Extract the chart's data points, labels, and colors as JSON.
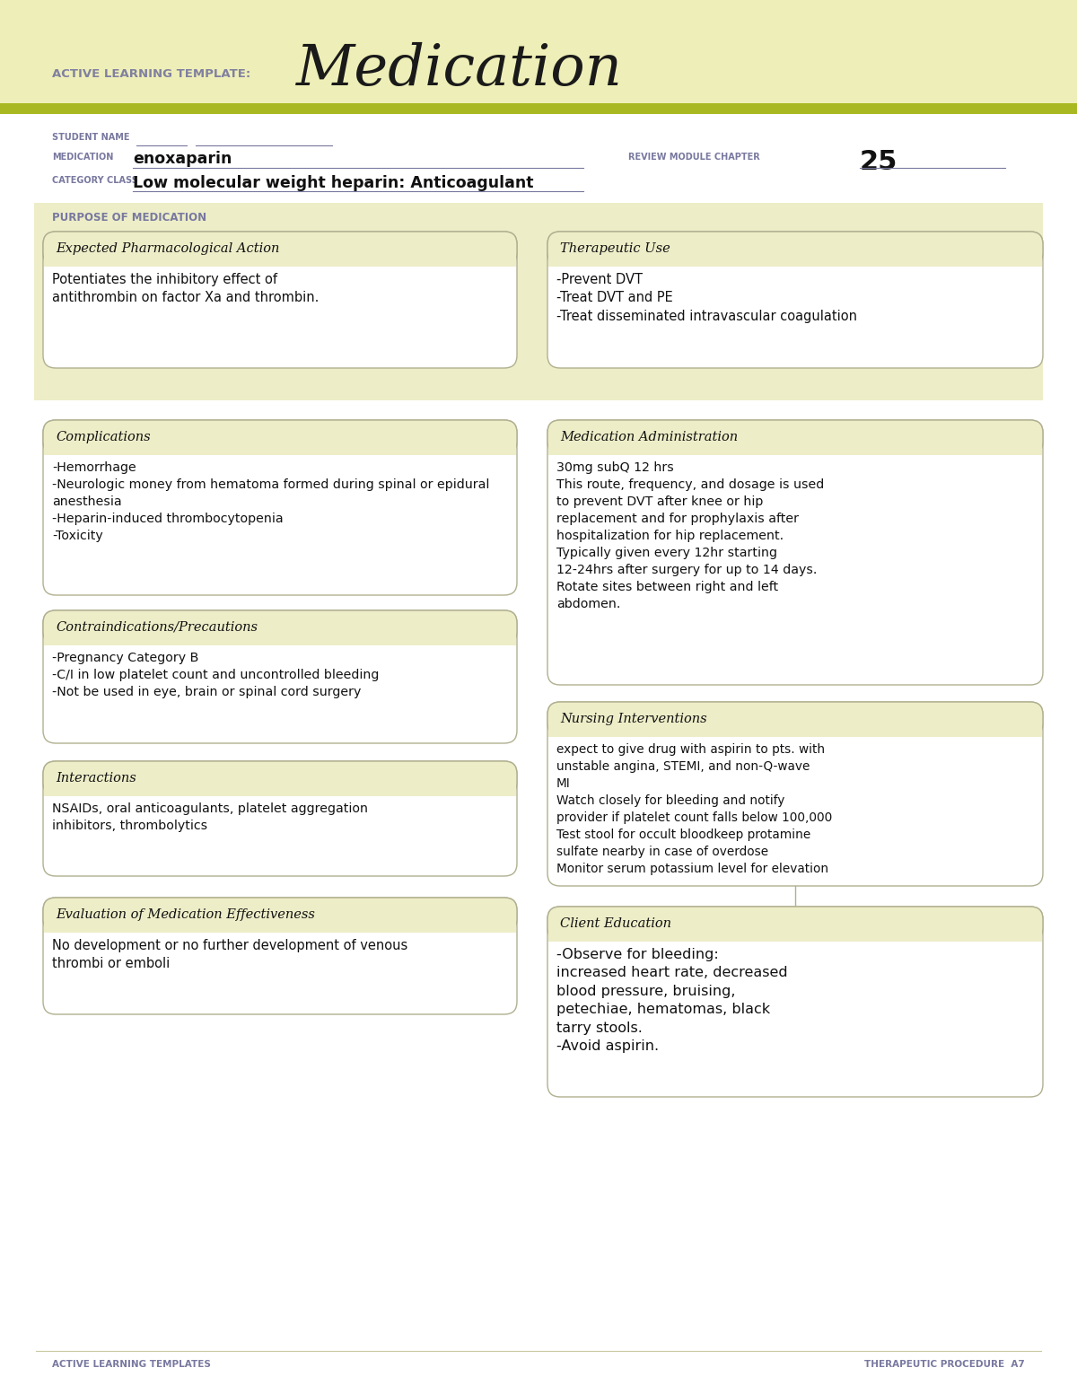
{
  "bg_color": "#f5f5dc",
  "white": "#ffffff",
  "header_bg": "#eeeeb8",
  "box_bg": "#ededc8",
  "box_border": "#b0b090",
  "title_label_color": "#8080a0",
  "title_color": "#1a1a1a",
  "label_color": "#7878a0",
  "text_color": "#111111",
  "green_line": "#a8b820",
  "header_text": "ACTIVE LEARNING TEMPLATE:",
  "title_text": "Medication",
  "student_label": "STUDENT NAME",
  "medication_label": "MEDICATION",
  "medication_value": "enoxaparin",
  "review_label": "REVIEW MODULE CHAPTER",
  "review_value": "25",
  "category_label": "CATEGORY CLASS",
  "category_value": "Low molecular weight heparin: Anticoagulant",
  "purpose_label": "PURPOSE OF MEDICATION",
  "box1_title": "Expected Pharmacological Action",
  "box1_body": "Potentiates the inhibitory effect of\nantithrombin on factor Xa and thrombin.",
  "box2_title": "Therapeutic Use",
  "box2_body": "-Prevent DVT\n-Treat DVT and PE\n-Treat disseminated intravascular coagulation",
  "box3_title": "Complications",
  "box3_body": "-Hemorrhage\n-Neurologic money from hematoma formed during spinal or epidural\nanesthesia\n-Heparin-induced thrombocytopenia\n-Toxicity",
  "box4_title": "Medication Administration",
  "box4_body": "30mg subQ 12 hrs\nThis route, frequency, and dosage is used\nto prevent DVT after knee or hip\nreplacement and for prophylaxis after\nhospitalization for hip replacement.\nTypically given every 12hr starting\n12-24hrs after surgery for up to 14 days.\nRotate sites between right and left\nabdomen.",
  "box5_title": "Contraindications/Precautions",
  "box5_body": "-Pregnancy Category B\n-C/I in low platelet count and uncontrolled bleeding\n-Not be used in eye, brain or spinal cord surgery",
  "box6_title": "Nursing Interventions",
  "box6_body": "expect to give drug with aspirin to pts. with\nunstable angina, STEMI, and non-Q-wave\nMI\nWatch closely for bleeding and notify\nprovider if platelet count falls below 100,000\nTest stool for occult bloodkeep protamine\nsulfate nearby in case of overdose\nMonitor serum potassium level for elevation",
  "box7_title": "Interactions",
  "box7_body": "NSAIDs, oral anticoagulants, platelet aggregation\ninhibitors, thrombolytics",
  "box8_title": "Client Education",
  "box8_body": "-Observe for bleeding:\nincreased heart rate, decreased\nblood pressure, bruising,\npetechiae, hematomas, black\ntarry stools.\n-Avoid aspirin.",
  "box9_title": "Evaluation of Medication Effectiveness",
  "box9_body": "No development or no further development of venous\nthrombi or emboli",
  "footer_left": "ACTIVE LEARNING TEMPLATES",
  "footer_right": "THERAPEUTIC PROCEDURE  A7"
}
